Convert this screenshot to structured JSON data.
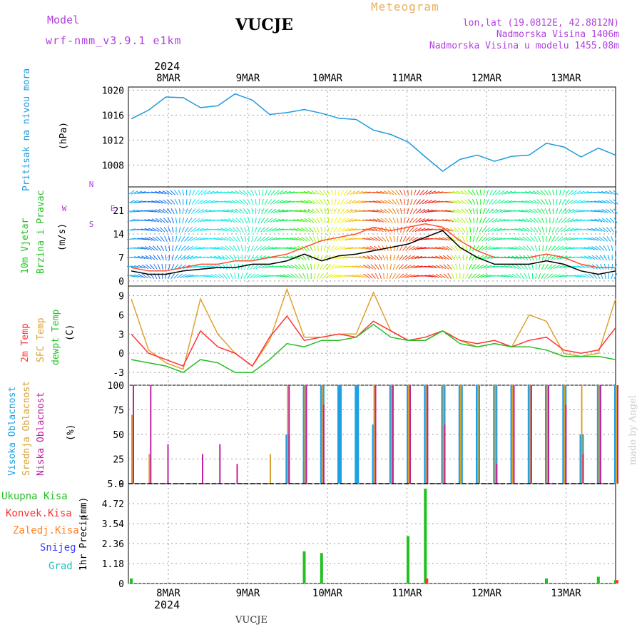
{
  "header": {
    "model_label": "Model",
    "model_value": "wrf-nmm_v3.9.1 e1km",
    "station": "VUCJE",
    "meteogram": "Meteogram",
    "lonlat": "lon,lat (19.0812E, 42.8812N)",
    "elevation": "Nadmorska Visina 1406m",
    "model_elevation": "Nadmorska Visina u modelu 1455.08m",
    "year_top": "2024",
    "year_bottom": "2024",
    "footer_station": "VUCJE",
    "credit": "made by Angel"
  },
  "time_axis": {
    "date_labels": [
      "8MAR",
      "9MAR",
      "10MAR",
      "11MAR",
      "12MAR",
      "13MAR"
    ]
  },
  "panel_labels": {
    "pressure": {
      "title": "Pritisak na nivou mora",
      "unit": "(hPa)"
    },
    "wind": {
      "line1": "10m Vjetar",
      "line2": "Brzina i Pravac",
      "unit": "(m/s)",
      "compass": {
        "n": "N",
        "s": "S",
        "e": "E",
        "w": "W"
      }
    },
    "temp": {
      "t2m": "2m Temp",
      "sfc": "SFC Temp",
      "dew": "dewpt Temp",
      "unit": "(C)"
    },
    "cloud": {
      "high": "Visoka Oblacnost",
      "mid": "Srednja Oblacnost",
      "low": "Niska Oblacnost",
      "unit": "(%)"
    },
    "precip": {
      "title": "1hr Precip",
      "unit": "(mm)",
      "legend": [
        "Ukupna Kisa",
        "Konvek.Kisa",
        "Zaledj.Kisa",
        "Snijeg",
        "Grad"
      ]
    }
  },
  "colors": {
    "pressure": "#1e9bdf",
    "t2m": "#ff3333",
    "sfc": "#e0a030",
    "dew": "#22c022",
    "high_cloud": "#1ea0e6",
    "mid_cloud": "#d8a030",
    "low_cloud": "#c020a0",
    "rain": "#22c022",
    "conv": "#ff3333",
    "frz": "#ff8020",
    "snow": "#4040ff",
    "grad": "#20c0c0",
    "wind_avg": "#000000",
    "wind_gust": "#ff5030",
    "model_label": "#b040e0",
    "meteogram": "#e8b060"
  },
  "chart_data": [
    {
      "type": "line",
      "title": "Pritisak na nivou mora",
      "ylabel": "(hPa)",
      "yticks": [
        1008,
        1012,
        1016,
        1020
      ],
      "ylim": [
        1004.5,
        1020.5
      ],
      "x": [
        0,
        6,
        12,
        18,
        24,
        30,
        36,
        42,
        48,
        54,
        60,
        66,
        72,
        78,
        84,
        90,
        96,
        102,
        108,
        114,
        120,
        126,
        132,
        138,
        144,
        150,
        156,
        162,
        168
      ],
      "series": [
        {
          "values": [
            1015.4,
            1016.8,
            1018.9,
            1018.8,
            1017.2,
            1017.5,
            1019.4,
            1018.4,
            1016.1,
            1016.4,
            1016.9,
            1016.3,
            1015.5,
            1015.3,
            1013.6,
            1012.9,
            1011.7,
            1009.3,
            1007.0,
            1008.9,
            1009.6,
            1008.6,
            1009.4,
            1009.6,
            1011.5,
            1010.9,
            1009.3,
            1010.7,
            1009.6
          ]
        }
      ]
    },
    {
      "type": "line",
      "title": "10m Vjetar Brzina i Pravac",
      "ylabel": "(m/s)",
      "yticks": [
        0,
        7,
        14,
        21
      ],
      "ylim": [
        -1.5,
        28
      ],
      "x": [
        0,
        6,
        12,
        18,
        24,
        30,
        36,
        42,
        48,
        54,
        60,
        66,
        72,
        78,
        84,
        90,
        96,
        102,
        108,
        114,
        120,
        126,
        132,
        138,
        144,
        150,
        156,
        162,
        168
      ],
      "series": [
        {
          "values": [
            3,
            2,
            2,
            3,
            3.5,
            4,
            4,
            5,
            5,
            6,
            8,
            6,
            7.5,
            8,
            9,
            10,
            11,
            13,
            15,
            10,
            7,
            5,
            5,
            5,
            6,
            5,
            3,
            2,
            3
          ]
        },
        {
          "values": [
            4,
            3,
            3,
            4,
            5,
            5,
            6,
            6,
            7,
            8,
            10,
            12,
            13,
            14,
            16,
            15,
            16,
            17,
            16,
            12,
            9,
            7,
            7,
            7,
            8,
            7,
            5,
            4,
            4
          ]
        }
      ]
    },
    {
      "type": "line",
      "title": "2m Temp / SFC Temp / dewpt Temp",
      "ylabel": "(C)",
      "yticks": [
        -3,
        0,
        3,
        6,
        9
      ],
      "ylim": [
        -5,
        10.5
      ],
      "x": [
        0,
        6,
        12,
        18,
        24,
        30,
        36,
        42,
        48,
        54,
        60,
        66,
        72,
        78,
        84,
        90,
        96,
        102,
        108,
        114,
        120,
        126,
        132,
        138,
        144,
        150,
        156,
        162,
        168
      ],
      "series": [
        {
          "name": "2m Temp",
          "values": [
            3,
            0,
            -1,
            -2,
            3.5,
            1,
            0,
            -2,
            2.5,
            5.8,
            2,
            2.5,
            3,
            2.5,
            5,
            3.5,
            2,
            2.5,
            3.5,
            2,
            1.5,
            2,
            1,
            2,
            2.5,
            0.5,
            0,
            0.5,
            4
          ]
        },
        {
          "name": "SFC Temp",
          "values": [
            8.5,
            0.5,
            -1.5,
            -2.5,
            8.5,
            3,
            0,
            -2,
            2,
            10,
            2.5,
            2.5,
            3,
            3,
            9.5,
            3.5,
            2,
            2,
            3.5,
            2,
            1,
            1.5,
            1,
            6,
            5,
            0,
            -0.5,
            0,
            8.5
          ]
        },
        {
          "name": "dewpt Temp",
          "values": [
            -1,
            -1.5,
            -2,
            -3,
            -1,
            -1.5,
            -3,
            -3,
            -1,
            1.5,
            1,
            2,
            2,
            2.5,
            4.5,
            2.5,
            2,
            2,
            3.5,
            1.5,
            1,
            1.5,
            1,
            1,
            0.5,
            -0.5,
            -0.5,
            -0.5,
            -1
          ]
        }
      ]
    },
    {
      "type": "bar",
      "title": "Visoka / Srednja / Niska Oblacnost",
      "ylabel": "(%)",
      "yticks": [
        0,
        25,
        50,
        75,
        100
      ],
      "ylim": [
        0,
        100
      ],
      "x": [
        0,
        6,
        12,
        18,
        24,
        30,
        36,
        42,
        48,
        54,
        60,
        66,
        72,
        78,
        84,
        90,
        96,
        102,
        108,
        114,
        120,
        126,
        132,
        138,
        144,
        150,
        156,
        162,
        168
      ],
      "series": [
        {
          "name": "Visoka Oblacnost",
          "values": [
            0,
            0,
            0,
            0,
            0,
            0,
            0,
            0,
            0,
            50,
            100,
            100,
            100,
            100,
            60,
            100,
            100,
            100,
            100,
            100,
            100,
            100,
            100,
            100,
            100,
            100,
            50,
            100,
            100
          ]
        },
        {
          "name": "Srednja Oblacnost",
          "values": [
            70,
            30,
            0,
            0,
            0,
            0,
            0,
            0,
            30,
            100,
            100,
            100,
            0,
            0,
            100,
            100,
            100,
            100,
            100,
            100,
            100,
            100,
            100,
            100,
            100,
            100,
            100,
            100,
            100
          ]
        },
        {
          "name": "Niska Oblacnost",
          "values": [
            100,
            100,
            40,
            0,
            30,
            40,
            20,
            0,
            0,
            100,
            100,
            80,
            0,
            0,
            100,
            100,
            100,
            100,
            60,
            0,
            0,
            20,
            100,
            100,
            100,
            80,
            30,
            100,
            100
          ]
        }
      ]
    },
    {
      "type": "bar",
      "title": "1hr Precip",
      "ylabel": "(mm)",
      "yticks": [
        0,
        1.18,
        2.36,
        3.54,
        4.72,
        5.9
      ],
      "ylim": [
        0,
        5.9
      ],
      "x": [
        0,
        6,
        12,
        18,
        24,
        30,
        36,
        42,
        48,
        54,
        60,
        66,
        72,
        78,
        84,
        90,
        96,
        102,
        108,
        114,
        120,
        126,
        132,
        138,
        144,
        150,
        156,
        162,
        168
      ],
      "series": [
        {
          "name": "Ukupna Kisa",
          "values": [
            0.3,
            0,
            0,
            0,
            0,
            0,
            0,
            0,
            0,
            0,
            1.9,
            1.8,
            0,
            0,
            0,
            0,
            2.8,
            5.6,
            0,
            0,
            0,
            0,
            0,
            0,
            0.3,
            0,
            0,
            0.4,
            0.2
          ]
        },
        {
          "name": "Konvek.Kisa",
          "values": [
            0,
            0,
            0,
            0,
            0,
            0,
            0,
            0,
            0,
            0,
            0,
            0,
            0,
            0,
            0,
            0,
            0,
            0.3,
            0,
            0,
            0,
            0,
            0,
            0,
            0,
            0,
            0,
            0,
            0.2
          ]
        },
        {
          "name": "Zaledj.Kisa",
          "values": [
            0,
            0,
            0,
            0,
            0,
            0,
            0,
            0,
            0,
            0,
            0,
            0,
            0,
            0,
            0,
            0,
            0,
            0,
            0,
            0,
            0,
            0,
            0,
            0,
            0,
            0,
            0,
            0,
            0
          ]
        },
        {
          "name": "Snijeg",
          "values": [
            0,
            0,
            0,
            0,
            0,
            0,
            0,
            0,
            0,
            0,
            0,
            0,
            0,
            0,
            0,
            0,
            0,
            0,
            0,
            0,
            0,
            0,
            0,
            0,
            0,
            0,
            0,
            0,
            0
          ]
        },
        {
          "name": "Grad",
          "values": [
            0,
            0,
            0,
            0,
            0,
            0,
            0,
            0,
            0,
            0,
            0,
            0,
            0,
            0,
            0,
            0,
            0,
            0,
            0,
            0,
            0,
            0,
            0,
            0,
            0,
            0,
            0,
            0,
            0
          ]
        }
      ]
    }
  ]
}
